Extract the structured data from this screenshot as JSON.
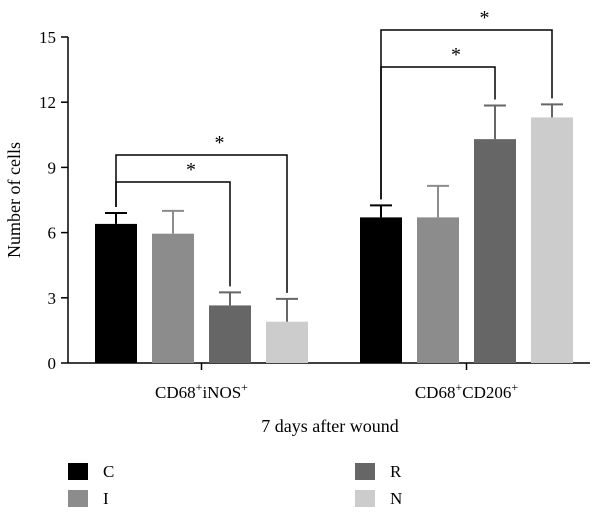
{
  "chart_data": {
    "type": "bar",
    "xlabel": "7 days after wound",
    "ylabel": "Number of cells",
    "ylim": [
      0,
      15
    ],
    "yticks": [
      "0",
      "3",
      "6",
      "9",
      "12",
      "15"
    ],
    "grid": false,
    "legend_placement": "bottom",
    "groups": [
      {
        "label_main": "CD68",
        "label_sup1": "+",
        "label_mid": "iNOS",
        "label_sup2": "+"
      },
      {
        "label_main": "CD68",
        "label_sup1": "+",
        "label_mid": "CD206",
        "label_sup2": "+"
      }
    ],
    "series": [
      {
        "name": "C",
        "color": "#000000",
        "values": [
          6.4,
          6.7
        ],
        "errors": [
          0.5,
          0.55
        ]
      },
      {
        "name": "I",
        "color": "#8c8c8c",
        "values": [
          5.95,
          6.7
        ],
        "errors": [
          1.05,
          1.45
        ]
      },
      {
        "name": "R",
        "color": "#666666",
        "values": [
          2.65,
          10.3
        ],
        "errors": [
          0.6,
          1.55
        ]
      },
      {
        "name": "N",
        "color": "#cccccc",
        "values": [
          1.9,
          11.3
        ],
        "errors": [
          1.05,
          0.6
        ]
      }
    ],
    "significance": [
      {
        "group": 0,
        "from": 0,
        "to": 2,
        "label": "*"
      },
      {
        "group": 0,
        "from": 0,
        "to": 3,
        "label": "*"
      },
      {
        "group": 1,
        "from": 0,
        "to": 2,
        "label": "*"
      },
      {
        "group": 1,
        "from": 0,
        "to": 3,
        "label": "*"
      }
    ]
  }
}
